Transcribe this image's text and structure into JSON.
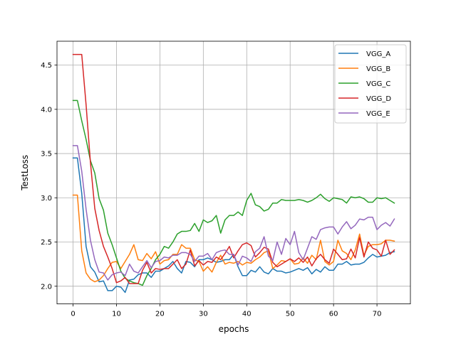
{
  "chart_data": {
    "type": "line",
    "title": "",
    "xlabel": "epochs",
    "ylabel": "TestLoss",
    "xlim": [
      -3.7,
      77.7
    ],
    "ylim": [
      1.8,
      4.77
    ],
    "xticks": [
      0,
      10,
      20,
      30,
      40,
      50,
      60,
      70
    ],
    "yticks": [
      2.0,
      2.5,
      3.0,
      3.5,
      4.0,
      4.5
    ],
    "ytick_labels": [
      "2.0",
      "2.5",
      "3.0",
      "3.5",
      "4.0",
      "4.5"
    ],
    "grid": true,
    "legend_position": "top-right",
    "x": [
      0,
      1,
      2,
      3,
      4,
      5,
      6,
      7,
      8,
      9,
      10,
      11,
      12,
      13,
      14,
      15,
      16,
      17,
      18,
      19,
      20,
      21,
      22,
      23,
      24,
      25,
      26,
      27,
      28,
      29,
      30,
      31,
      32,
      33,
      34,
      35,
      36,
      37,
      38,
      39,
      40,
      41,
      42,
      43,
      44,
      45,
      46,
      47,
      48,
      49,
      50,
      51,
      52,
      53,
      54,
      55,
      56,
      57,
      58,
      59,
      60,
      61,
      62,
      63,
      64,
      65,
      66,
      67,
      68,
      69,
      70,
      71,
      72,
      73,
      74
    ],
    "series": [
      {
        "name": "VGG_A",
        "color": "#1f77b4",
        "values": [
          3.45,
          3.45,
          3.05,
          2.45,
          2.22,
          2.16,
          2.05,
          2.06,
          1.95,
          1.95,
          2.0,
          1.99,
          1.93,
          2.07,
          2.08,
          2.13,
          2.15,
          2.15,
          2.1,
          2.17,
          2.17,
          2.2,
          2.23,
          2.28,
          2.2,
          2.15,
          2.28,
          2.27,
          2.22,
          2.3,
          2.3,
          2.32,
          2.3,
          2.27,
          2.28,
          2.3,
          2.3,
          2.36,
          2.22,
          2.12,
          2.12,
          2.18,
          2.16,
          2.22,
          2.16,
          2.14,
          2.2,
          2.17,
          2.17,
          2.15,
          2.16,
          2.18,
          2.2,
          2.18,
          2.21,
          2.14,
          2.19,
          2.16,
          2.22,
          2.18,
          2.18,
          2.25,
          2.25,
          2.28,
          2.24,
          2.25,
          2.25,
          2.27,
          2.32,
          2.36,
          2.33,
          2.34,
          2.35,
          2.38,
          2.39
        ]
      },
      {
        "name": "VGG_B",
        "color": "#ff7f0e",
        "values": [
          3.03,
          3.03,
          2.4,
          2.15,
          2.08,
          2.05,
          2.07,
          2.12,
          2.2,
          2.27,
          2.28,
          2.2,
          2.28,
          2.36,
          2.47,
          2.3,
          2.29,
          2.37,
          2.31,
          2.39,
          2.25,
          2.29,
          2.3,
          2.36,
          2.36,
          2.47,
          2.43,
          2.43,
          2.3,
          2.28,
          2.17,
          2.22,
          2.16,
          2.27,
          2.35,
          2.25,
          2.27,
          2.26,
          2.28,
          2.24,
          2.27,
          2.26,
          2.3,
          2.33,
          2.38,
          2.4,
          2.2,
          2.24,
          2.29,
          2.28,
          2.31,
          2.25,
          2.26,
          2.32,
          2.26,
          2.35,
          2.3,
          2.52,
          2.28,
          2.24,
          2.28,
          2.52,
          2.4,
          2.37,
          2.3,
          2.41,
          2.59,
          2.35,
          2.45,
          2.47,
          2.47,
          2.48,
          2.52,
          2.52,
          2.51
        ]
      },
      {
        "name": "VGG_C",
        "color": "#2ca02c",
        "values": [
          4.1,
          4.1,
          3.87,
          3.66,
          3.42,
          3.28,
          2.99,
          2.86,
          2.6,
          2.47,
          2.32,
          2.17,
          2.09,
          2.06,
          2.04,
          2.03,
          2.01,
          2.12,
          2.2,
          2.3,
          2.36,
          2.45,
          2.43,
          2.5,
          2.59,
          2.62,
          2.62,
          2.63,
          2.71,
          2.62,
          2.75,
          2.72,
          2.74,
          2.8,
          2.6,
          2.75,
          2.8,
          2.8,
          2.84,
          2.8,
          2.97,
          3.05,
          2.92,
          2.9,
          2.85,
          2.87,
          2.94,
          2.94,
          2.98,
          2.97,
          2.97,
          2.97,
          2.98,
          2.97,
          2.95,
          2.97,
          3.0,
          3.04,
          2.99,
          2.96,
          3.0,
          2.99,
          2.98,
          2.94,
          3.01,
          3.0,
          3.01,
          2.99,
          2.95,
          2.95,
          3.0,
          2.99,
          3.0,
          2.97,
          2.94
        ]
      },
      {
        "name": "VGG_D",
        "color": "#d62728",
        "values": [
          4.62,
          4.62,
          4.62,
          4.05,
          3.4,
          2.88,
          2.63,
          2.45,
          2.33,
          2.2,
          2.04,
          2.06,
          2.1,
          2.03,
          2.03,
          2.03,
          2.18,
          2.27,
          2.15,
          2.2,
          2.19,
          2.2,
          2.2,
          2.25,
          2.3,
          2.2,
          2.25,
          2.41,
          2.23,
          2.29,
          2.24,
          2.28,
          2.27,
          2.33,
          2.3,
          2.37,
          2.45,
          2.32,
          2.4,
          2.47,
          2.49,
          2.46,
          2.33,
          2.38,
          2.44,
          2.42,
          2.27,
          2.22,
          2.25,
          2.28,
          2.31,
          2.28,
          2.32,
          2.27,
          2.33,
          2.23,
          2.31,
          2.36,
          2.3,
          2.26,
          2.42,
          2.36,
          2.3,
          2.31,
          2.42,
          2.32,
          2.55,
          2.33,
          2.5,
          2.43,
          2.41,
          2.34,
          2.52,
          2.36,
          2.41
        ]
      },
      {
        "name": "VGG_E",
        "color": "#9467bd",
        "values": [
          3.59,
          3.59,
          3.3,
          2.87,
          2.52,
          2.3,
          2.16,
          2.15,
          2.07,
          2.13,
          2.15,
          2.16,
          2.12,
          2.25,
          2.17,
          2.15,
          2.22,
          2.29,
          2.21,
          2.28,
          2.29,
          2.33,
          2.32,
          2.35,
          2.35,
          2.38,
          2.38,
          2.36,
          2.28,
          2.34,
          2.34,
          2.37,
          2.3,
          2.38,
          2.4,
          2.41,
          2.36,
          2.36,
          2.24,
          2.34,
          2.32,
          2.28,
          2.39,
          2.43,
          2.56,
          2.34,
          2.29,
          2.5,
          2.36,
          2.54,
          2.47,
          2.62,
          2.38,
          2.3,
          2.43,
          2.56,
          2.53,
          2.64,
          2.66,
          2.67,
          2.67,
          2.59,
          2.67,
          2.73,
          2.65,
          2.69,
          2.76,
          2.75,
          2.78,
          2.78,
          2.64,
          2.69,
          2.72,
          2.68,
          2.76
        ]
      }
    ]
  }
}
